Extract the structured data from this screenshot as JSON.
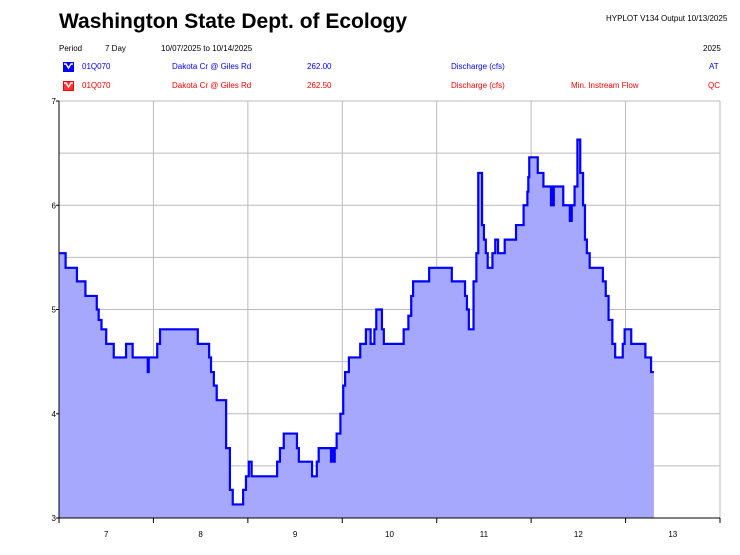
{
  "header": {
    "title": "Washington State Dept. of Ecology",
    "version": "HYPLOT V134  Output 10/13/2025",
    "period_label": "Period",
    "period_value": "7 Day",
    "date_range": "10/07/2025  to  10/14/2025",
    "year": "2025"
  },
  "legend": [
    {
      "icon": "hydrograph-icon",
      "color": "#0000ff",
      "station": "01Q070",
      "site": "Dakota Cr @ Giles Rd",
      "value": "262.00",
      "parameter": "Discharge (cfs)",
      "note": "",
      "code": "AT"
    },
    {
      "icon": "hydrograph-icon",
      "color": "#ff0000",
      "station": "01Q070",
      "site": "Dakota Cr @ Giles Rd",
      "value": "262.50",
      "parameter": "Discharge (cfs)",
      "note": "Min. Instream Flow",
      "code": "QC"
    }
  ],
  "chart_data": {
    "type": "area",
    "title": "Washington State Dept. of Ecology",
    "xlabel": "",
    "ylabel": "",
    "x_unit": "days since 10/07/2025 00:00",
    "xlim": [
      0,
      7
    ],
    "ylim": [
      3,
      7
    ],
    "yticks": [
      "3",
      "4",
      "5",
      "6",
      "7"
    ],
    "xticks": [
      "7",
      "8",
      "9",
      "10",
      "11",
      "12",
      "13"
    ],
    "grid": true,
    "line_color": "#0000ff",
    "fill_color": "#a5a8fc",
    "series": [
      {
        "name": "Discharge (cfs)",
        "points": [
          [
            0,
            5.54
          ],
          [
            0.07,
            5.4
          ],
          [
            0.19,
            5.27
          ],
          [
            0.28,
            5.13
          ],
          [
            0.4,
            5.0
          ],
          [
            0.42,
            4.9
          ],
          [
            0.45,
            4.81
          ],
          [
            0.5,
            4.67
          ],
          [
            0.58,
            4.54
          ],
          [
            0.71,
            4.67
          ],
          [
            0.78,
            4.54
          ],
          [
            0.94,
            4.4
          ],
          [
            0.95,
            4.54
          ],
          [
            1.04,
            4.67
          ],
          [
            1.07,
            4.81
          ],
          [
            1.47,
            4.67
          ],
          [
            1.59,
            4.54
          ],
          [
            1.61,
            4.4
          ],
          [
            1.64,
            4.27
          ],
          [
            1.67,
            4.13
          ],
          [
            1.77,
            3.67
          ],
          [
            1.81,
            3.27
          ],
          [
            1.84,
            3.13
          ],
          [
            1.95,
            3.27
          ],
          [
            1.98,
            3.4
          ],
          [
            2.01,
            3.54
          ],
          [
            2.04,
            3.4
          ],
          [
            2.31,
            3.54
          ],
          [
            2.34,
            3.67
          ],
          [
            2.38,
            3.81
          ],
          [
            2.52,
            3.67
          ],
          [
            2.54,
            3.54
          ],
          [
            2.68,
            3.4
          ],
          [
            2.73,
            3.54
          ],
          [
            2.75,
            3.67
          ],
          [
            2.88,
            3.54
          ],
          [
            2.89,
            3.67
          ],
          [
            2.91,
            3.54
          ],
          [
            2.92,
            3.67
          ],
          [
            2.94,
            3.81
          ],
          [
            2.98,
            4.0
          ],
          [
            3.01,
            4.27
          ],
          [
            3.03,
            4.4
          ],
          [
            3.07,
            4.54
          ],
          [
            3.19,
            4.67
          ],
          [
            3.25,
            4.81
          ],
          [
            3.3,
            4.67
          ],
          [
            3.34,
            4.81
          ],
          [
            3.36,
            5.0
          ],
          [
            3.42,
            4.81
          ],
          [
            3.44,
            4.67
          ],
          [
            3.65,
            4.81
          ],
          [
            3.7,
            4.94
          ],
          [
            3.73,
            5.13
          ],
          [
            3.75,
            5.27
          ],
          [
            3.92,
            5.4
          ],
          [
            4.16,
            5.27
          ],
          [
            4.3,
            5.13
          ],
          [
            4.32,
            5.0
          ],
          [
            4.34,
            4.81
          ],
          [
            4.39,
            5.27
          ],
          [
            4.42,
            5.54
          ],
          [
            4.44,
            6.31
          ],
          [
            4.48,
            5.81
          ],
          [
            4.5,
            5.67
          ],
          [
            4.52,
            5.54
          ],
          [
            4.54,
            5.4
          ],
          [
            4.59,
            5.54
          ],
          [
            4.62,
            5.67
          ],
          [
            4.65,
            5.54
          ],
          [
            4.72,
            5.67
          ],
          [
            4.84,
            5.81
          ],
          [
            4.92,
            6.0
          ],
          [
            4.96,
            6.13
          ],
          [
            4.97,
            6.27
          ],
          [
            4.98,
            6.46
          ],
          [
            5.07,
            6.31
          ],
          [
            5.13,
            6.18
          ],
          [
            5.21,
            6.0
          ],
          [
            5.22,
            6.18
          ],
          [
            5.23,
            6.0
          ],
          [
            5.24,
            6.18
          ],
          [
            5.34,
            6.0
          ],
          [
            5.41,
            5.85
          ],
          [
            5.43,
            6.0
          ],
          [
            5.46,
            6.18
          ],
          [
            5.49,
            6.63
          ],
          [
            5.52,
            6.31
          ],
          [
            5.55,
            6.0
          ],
          [
            5.57,
            5.67
          ],
          [
            5.59,
            5.54
          ],
          [
            5.62,
            5.4
          ],
          [
            5.76,
            5.27
          ],
          [
            5.79,
            5.13
          ],
          [
            5.82,
            4.9
          ],
          [
            5.86,
            4.67
          ],
          [
            5.89,
            4.54
          ],
          [
            5.97,
            4.67
          ],
          [
            5.99,
            4.81
          ],
          [
            6.06,
            4.67
          ],
          [
            6.21,
            4.54
          ],
          [
            6.27,
            4.4
          ],
          [
            6.3,
            4.4
          ]
        ]
      }
    ]
  }
}
